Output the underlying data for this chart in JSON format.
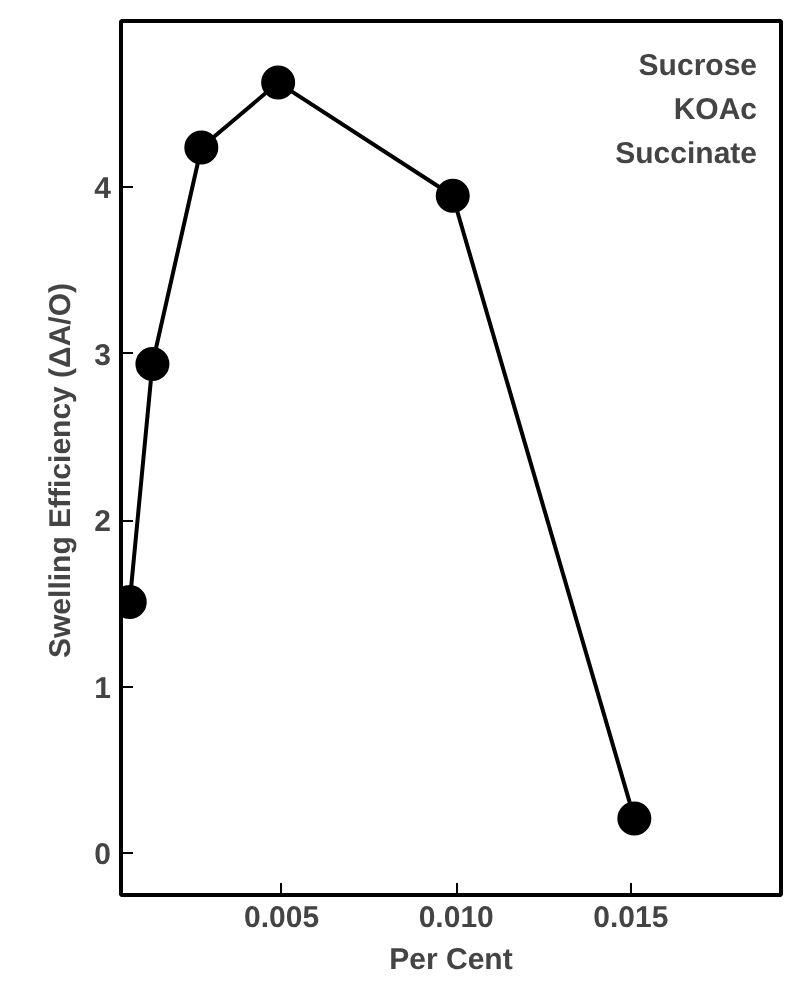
{
  "chart_data": {
    "type": "line",
    "xlabel": "Per Cent",
    "ylabel": "Swelling Efficiency    (ΔA/O)",
    "annotations": [
      "Sucrose\nKOAc\nSuccinate"
    ],
    "x": [
      0.00065,
      0.0013,
      0.0027,
      0.0049,
      0.0099,
      0.0151
    ],
    "series": [
      {
        "color": "#000000",
        "values": [
          1.51,
          2.94,
          4.24,
          4.63,
          3.95,
          0.21
        ]
      }
    ],
    "xlim": [
      0.0004,
      0.0193
    ],
    "ylim": [
      -0.25,
      5.0
    ],
    "xticks": [
      0.005,
      {
        "value": 0.01,
        "label": "0.010"
      },
      0.015
    ],
    "yticks": [
      0,
      1,
      2,
      3,
      4
    ],
    "marker": "circle",
    "line_style": "solid",
    "grid": false
  }
}
